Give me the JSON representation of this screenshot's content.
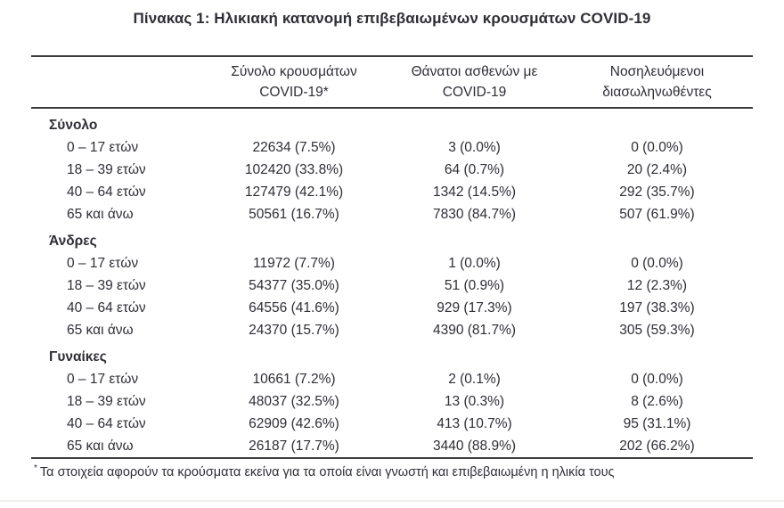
{
  "title": "Πίνακας 1: Ηλικιακή κατανομή επιβεβαιωμένων κρουσμάτων COVID-19",
  "table": {
    "column_headers": [
      {
        "line1": "Σύνολο κρουσμάτων",
        "line2": "COVID-19*"
      },
      {
        "line1": "Θάνατοι ασθενών με",
        "line2": "COVID-19"
      },
      {
        "line1": "Νοσηλευόμενοι",
        "line2": "διασωληνωθέντες"
      }
    ],
    "sections": [
      {
        "name": "Σύνολο",
        "rows": [
          {
            "age": "0 – 17 ετών",
            "cases": "22634 (7.5%)",
            "deaths": "3 (0.0%)",
            "intubated": "0 (0.0%)"
          },
          {
            "age": "18 – 39 ετών",
            "cases": "102420 (33.8%)",
            "deaths": "64 (0.7%)",
            "intubated": "20 (2.4%)"
          },
          {
            "age": "40 – 64 ετών",
            "cases": "127479 (42.1%)",
            "deaths": "1342 (14.5%)",
            "intubated": "292 (35.7%)"
          },
          {
            "age": "65 και άνω",
            "cases": "50561 (16.7%)",
            "deaths": "7830 (84.7%)",
            "intubated": "507 (61.9%)"
          }
        ]
      },
      {
        "name": "Άνδρες",
        "rows": [
          {
            "age": "0 – 17 ετών",
            "cases": "11972 (7.7%)",
            "deaths": "1 (0.0%)",
            "intubated": "0 (0.0%)"
          },
          {
            "age": "18 – 39 ετών",
            "cases": "54377 (35.0%)",
            "deaths": "51 (0.9%)",
            "intubated": "12 (2.3%)"
          },
          {
            "age": "40 – 64 ετών",
            "cases": "64556 (41.6%)",
            "deaths": "929 (17.3%)",
            "intubated": "197 (38.3%)"
          },
          {
            "age": "65 και άνω",
            "cases": "24370 (15.7%)",
            "deaths": "4390 (81.7%)",
            "intubated": "305 (59.3%)"
          }
        ]
      },
      {
        "name": "Γυναίκες",
        "rows": [
          {
            "age": "0 – 17 ετών",
            "cases": "10661 (7.2%)",
            "deaths": "2 (0.1%)",
            "intubated": "0 (0.0%)"
          },
          {
            "age": "18 – 39 ετών",
            "cases": "48037 (32.5%)",
            "deaths": "13 (0.3%)",
            "intubated": "8 (2.6%)"
          },
          {
            "age": "40 – 64 ετών",
            "cases": "62909 (42.6%)",
            "deaths": "413 (10.7%)",
            "intubated": "95 (31.1%)"
          },
          {
            "age": "65 και άνω",
            "cases": "26187 (17.7%)",
            "deaths": "3440 (88.9%)",
            "intubated": "202 (66.2%)"
          }
        ]
      }
    ]
  },
  "footnote": {
    "marker": "*",
    "text": "Τα στοιχεία αφορούν τα κρούσματα εκείνα για τα οποία είναι γνωστή και επιβεβαιωμένη η ηλικία τους"
  },
  "colors": {
    "text": "#2e2e36",
    "rule": "#3a3a3a",
    "bottom_edge": "#f1efec"
  }
}
